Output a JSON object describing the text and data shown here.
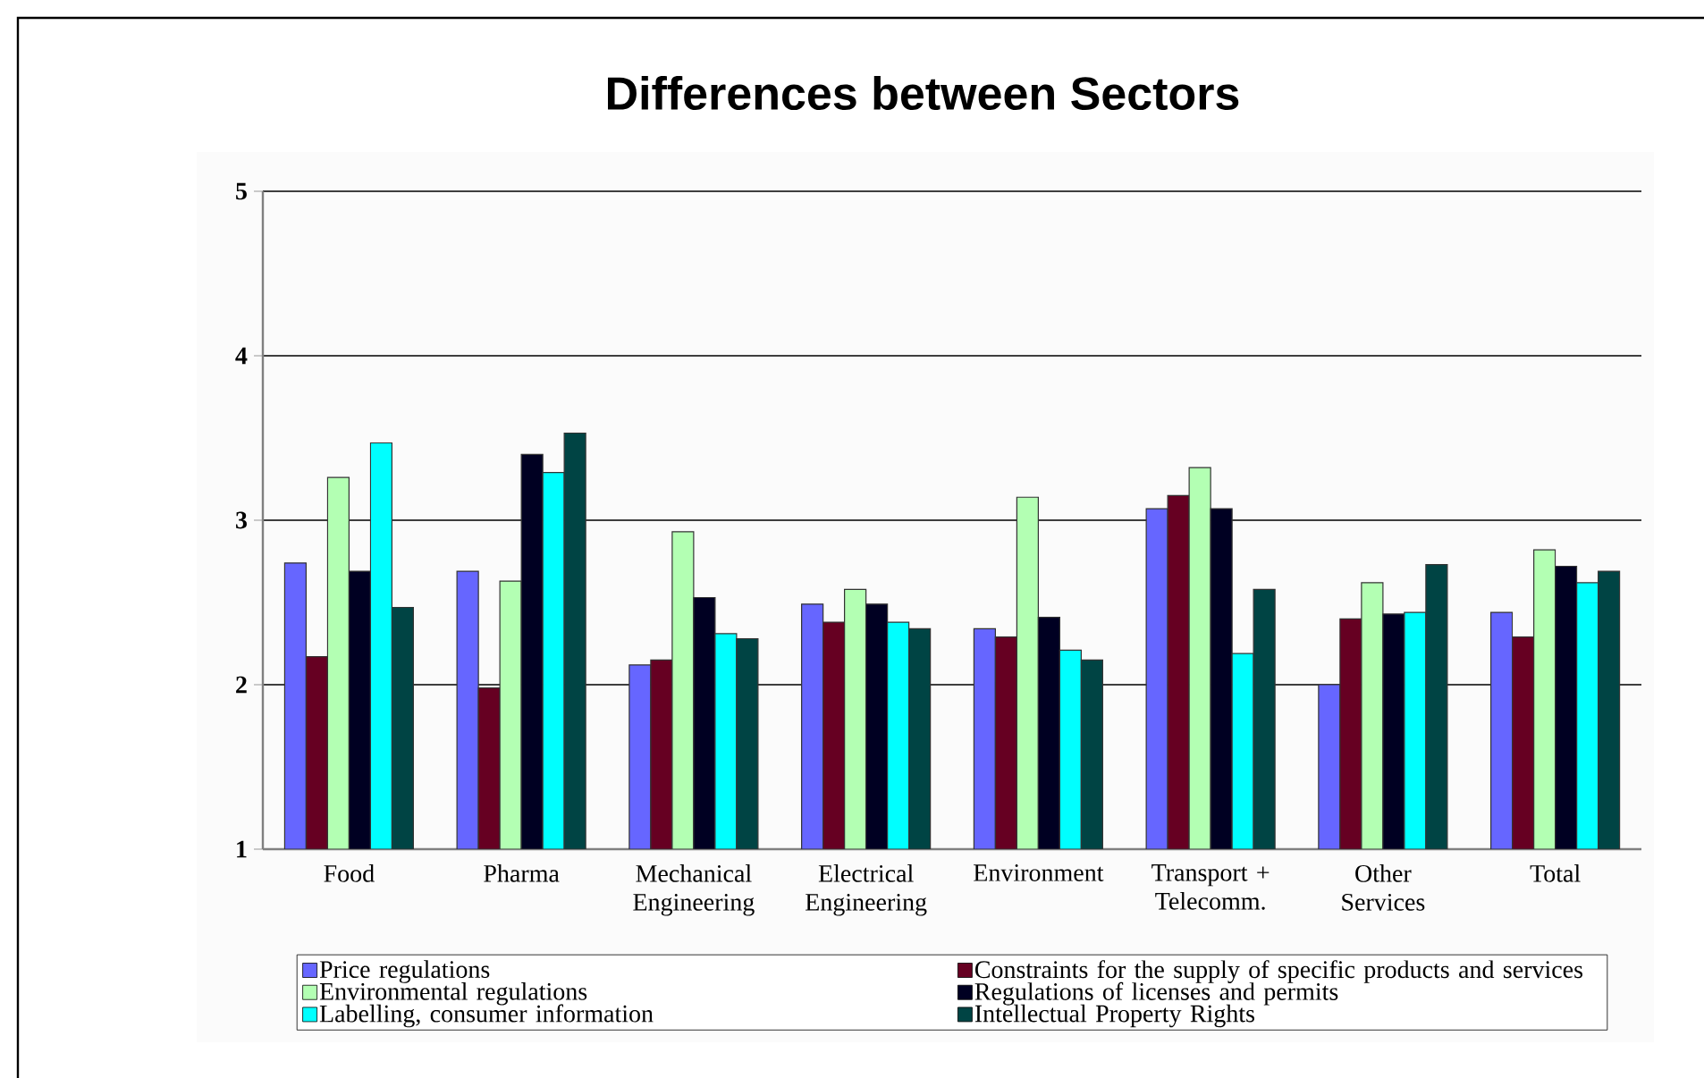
{
  "chart_data": {
    "type": "bar",
    "title": "Differences between Sectors",
    "categories": [
      "Food",
      "Pharma",
      "Mechanical Engineering",
      "Electrical Engineering",
      "Environment",
      "Transport + Telecomm.",
      "Other Services",
      "Total"
    ],
    "series": [
      {
        "name": "Price regulations",
        "color": "#6666ff",
        "values": [
          2.74,
          2.69,
          2.12,
          2.49,
          2.34,
          3.07,
          2.0,
          2.44
        ]
      },
      {
        "name": "Constraints for the supply of specific products and services",
        "color": "#660022",
        "values": [
          2.17,
          1.98,
          2.15,
          2.38,
          2.29,
          3.15,
          2.4,
          2.29
        ]
      },
      {
        "name": "Environmental regulations",
        "color": "#b3ffb3",
        "values": [
          3.26,
          2.63,
          2.93,
          2.58,
          3.14,
          3.32,
          2.62,
          2.82
        ]
      },
      {
        "name": "Regulations of licenses and permits",
        "color": "#000022",
        "values": [
          2.69,
          3.4,
          2.53,
          2.49,
          2.41,
          3.07,
          2.43,
          2.72
        ]
      },
      {
        "name": "Labelling, consumer information",
        "color": "#00ffff",
        "values": [
          3.47,
          3.29,
          2.31,
          2.38,
          2.21,
          2.19,
          2.44,
          2.62
        ]
      },
      {
        "name": "Intellectual Property Rights",
        "color": "#004444",
        "values": [
          2.47,
          3.53,
          2.28,
          2.34,
          2.15,
          2.58,
          2.73,
          2.69
        ]
      }
    ],
    "ylim": [
      1,
      5
    ],
    "yticks": [
      1,
      2,
      3,
      4,
      5
    ],
    "grid": "y",
    "legend": "bottom"
  }
}
